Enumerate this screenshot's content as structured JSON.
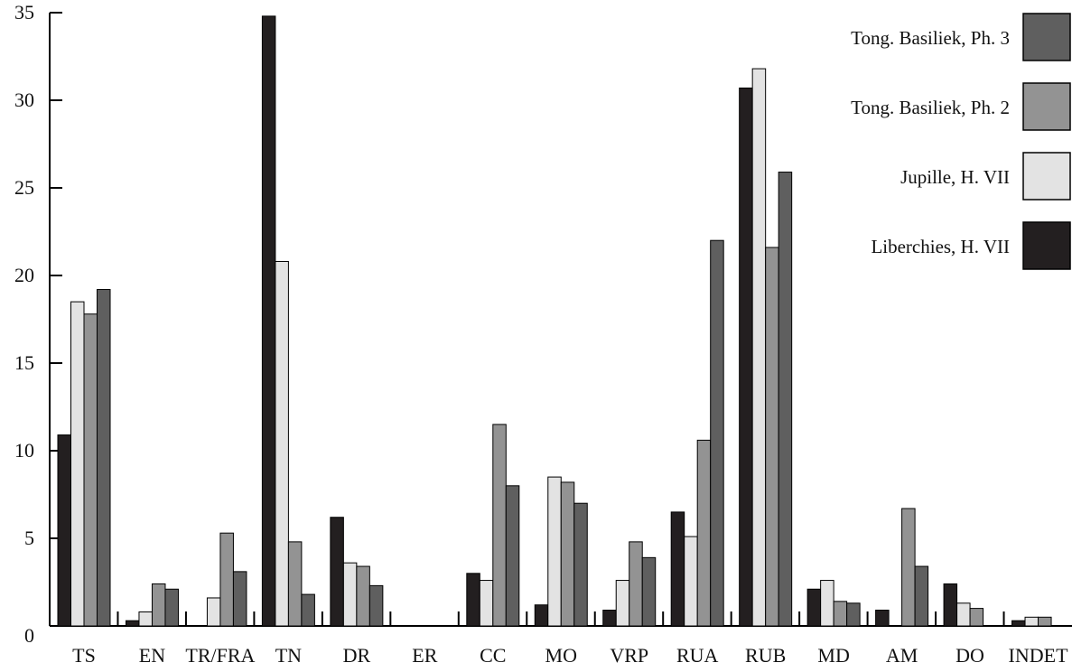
{
  "chart_data": {
    "type": "bar",
    "categories": [
      "TS",
      "EN",
      "TR/FRA",
      "TN",
      "DR",
      "ER",
      "CC",
      "MO",
      "VRP",
      "RUA",
      "RUB",
      "MD",
      "AM",
      "DO",
      "INDET"
    ],
    "series": [
      {
        "name": "Liberchies, H. VII",
        "color": "#231f20",
        "values": [
          10.9,
          0.3,
          0,
          34.8,
          6.2,
          0,
          3.0,
          1.2,
          0.9,
          6.5,
          30.7,
          2.1,
          0.9,
          2.4,
          0.3
        ]
      },
      {
        "name": "Jupille, H. VII",
        "color": "#e3e3e3",
        "values": [
          18.5,
          0.8,
          1.6,
          20.8,
          3.6,
          0,
          2.6,
          8.5,
          2.6,
          5.1,
          31.8,
          2.6,
          0,
          1.3,
          0.5
        ]
      },
      {
        "name": "Tong. Basiliek, Ph. 2",
        "color": "#939393",
        "values": [
          17.8,
          2.4,
          5.3,
          4.8,
          3.4,
          0,
          11.5,
          8.2,
          4.8,
          10.6,
          21.6,
          1.4,
          6.7,
          1.0,
          0.5
        ]
      },
      {
        "name": "Tong. Basiliek, Ph. 3",
        "color": "#5f5f5f",
        "values": [
          19.2,
          2.1,
          3.1,
          1.8,
          2.3,
          0,
          8.0,
          7.0,
          3.9,
          22.0,
          25.9,
          1.3,
          3.4,
          0,
          0
        ]
      }
    ],
    "yticks": [
      0,
      5,
      10,
      15,
      20,
      25,
      30,
      35
    ],
    "ylim": [
      0,
      35
    ],
    "legend_position": "top-right",
    "grid": false
  }
}
